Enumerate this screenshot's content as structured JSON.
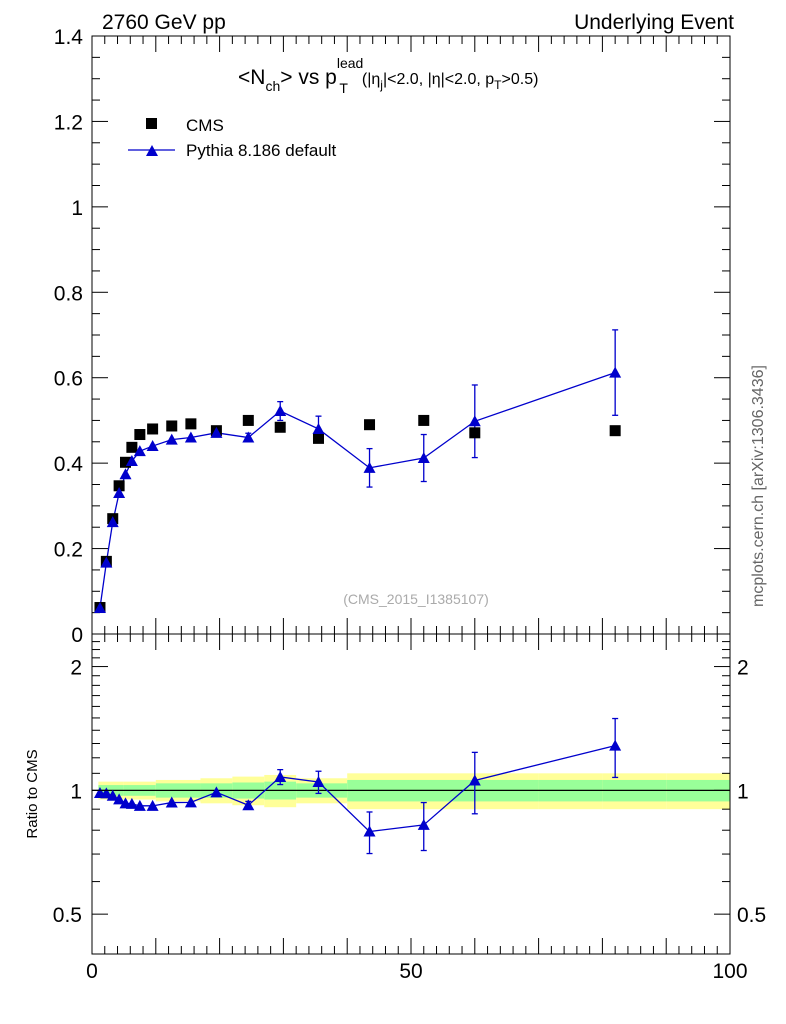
{
  "header": {
    "left": "2760 GeV pp",
    "right": "Underlying Event"
  },
  "title": {
    "main": "<N",
    "main_sub": "ch",
    "vs": "> vs p",
    "pt_sup": "lead",
    "pt_sub": "T",
    "cuts_a": "(|η",
    "cuts_a_sub": "j",
    "cuts_b": "|<2.0, |η|<2.0, p",
    "cuts_b_sub": "T",
    "cuts_c": ">0.5)"
  },
  "watermark": "(CMS_2015_I1385107)",
  "side_label": "mcplots.cern.ch [arXiv:1306.3436]",
  "ratio_ylabel": "Ratio to CMS",
  "colors": {
    "cms": "#000000",
    "pythia": "#0000cc",
    "band_outer": "#ffff99",
    "band_inner": "#99ff99",
    "reference_line": "#000000"
  },
  "chart_data": [
    {
      "type": "scatter",
      "panel": "main",
      "xlim": [
        0,
        100
      ],
      "ylim": [
        0,
        1.4
      ],
      "yticks": [
        "0",
        "0.2",
        "0.4",
        "0.6",
        "0.8",
        "1",
        "1.2",
        "1.4"
      ],
      "legend": {
        "placement": "top-left",
        "entries": [
          "CMS",
          "Pythia 8.186 default"
        ]
      },
      "series": [
        {
          "name": "CMS",
          "marker": "square",
          "x": [
            1.25,
            2.25,
            3.25,
            4.25,
            5.25,
            6.25,
            7.5,
            9.5,
            12.5,
            15.5,
            19.5,
            24.5,
            29.5,
            35.5,
            43.5,
            52,
            60,
            82
          ],
          "y": [
            0.062,
            0.17,
            0.27,
            0.347,
            0.402,
            0.437,
            0.467,
            0.48,
            0.487,
            0.492,
            0.476,
            0.5,
            0.484,
            0.458,
            0.49,
            0.5,
            0.471,
            0.476
          ]
        },
        {
          "name": "Pythia 8.186 default",
          "marker": "triangle",
          "x": [
            1.25,
            2.25,
            3.25,
            4.25,
            5.25,
            6.25,
            7.5,
            9.5,
            12.5,
            15.5,
            19.5,
            24.5,
            29.5,
            35.5,
            43.5,
            52,
            60,
            82
          ],
          "y": [
            0.061,
            0.167,
            0.262,
            0.33,
            0.374,
            0.405,
            0.428,
            0.44,
            0.455,
            0.46,
            0.471,
            0.46,
            0.522,
            0.48,
            0.389,
            0.412,
            0.498,
            0.612
          ],
          "yerr": [
            0,
            0,
            0,
            0,
            0,
            0,
            0,
            0,
            0,
            0,
            0,
            0.01,
            0.022,
            0.03,
            0.045,
            0.055,
            0.085,
            0.1
          ]
        }
      ]
    },
    {
      "type": "scatter",
      "panel": "ratio",
      "xlim": [
        0,
        100
      ],
      "ylim": [
        0.4,
        2.4
      ],
      "yscale": "log",
      "xticks": [
        "0",
        "50",
        "100"
      ],
      "yticks": [
        "0.5",
        "1",
        "2"
      ],
      "ylabel": "Ratio to CMS",
      "band_x_edges": [
        1,
        5,
        10,
        17,
        22,
        27,
        32,
        40,
        50,
        60,
        70,
        80,
        90,
        100
      ],
      "band_outer": [
        0.05,
        0.05,
        0.06,
        0.07,
        0.08,
        0.09,
        0.07,
        0.1,
        0.1,
        0.1,
        0.1,
        0.1,
        0.1
      ],
      "band_inner": [
        0.03,
        0.03,
        0.04,
        0.04,
        0.045,
        0.05,
        0.04,
        0.06,
        0.06,
        0.06,
        0.06,
        0.06,
        0.06
      ],
      "series": [
        {
          "name": "Pythia 8.186 default",
          "marker": "triangle",
          "x": [
            1.25,
            2.25,
            3.25,
            4.25,
            5.25,
            6.25,
            7.5,
            9.5,
            12.5,
            15.5,
            19.5,
            24.5,
            29.5,
            35.5,
            43.5,
            52,
            60,
            82
          ],
          "y": [
            0.985,
            0.983,
            0.97,
            0.951,
            0.93,
            0.927,
            0.917,
            0.917,
            0.934,
            0.935,
            0.989,
            0.92,
            1.078,
            1.048,
            0.794,
            0.824,
            1.057,
            1.285
          ],
          "yerr": [
            0,
            0,
            0,
            0,
            0,
            0,
            0,
            0,
            0,
            0,
            0,
            0.02,
            0.045,
            0.065,
            0.092,
            0.11,
            0.18,
            0.21
          ]
        }
      ]
    }
  ]
}
